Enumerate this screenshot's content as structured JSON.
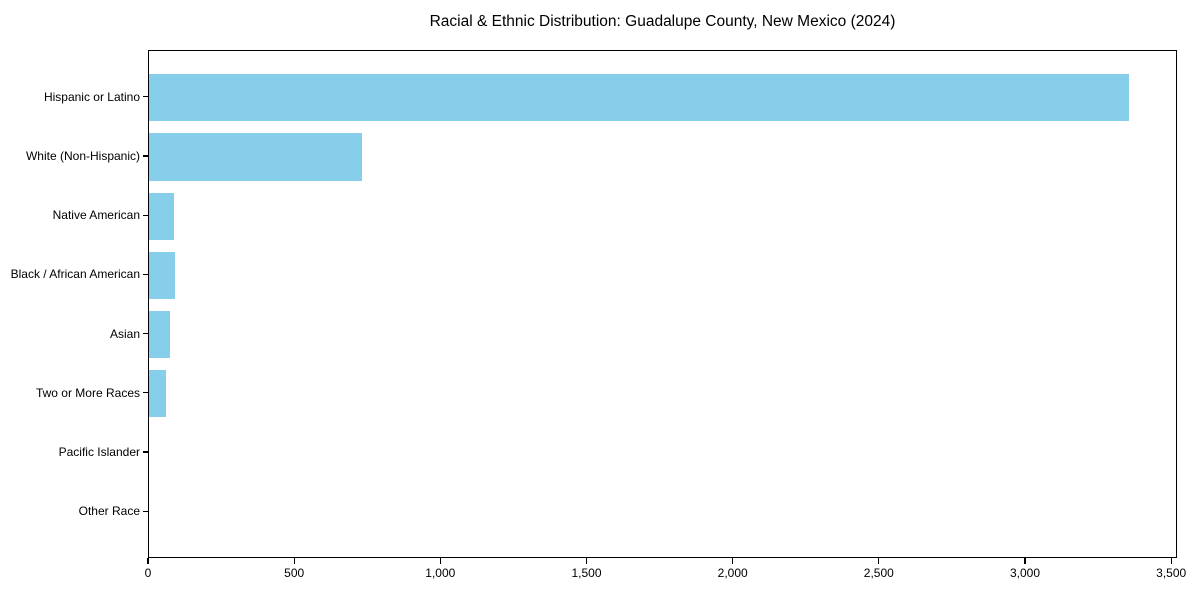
{
  "chart_data": {
    "type": "bar",
    "orientation": "horizontal",
    "title": "Racial & Ethnic Distribution: Guadalupe County, New Mexico (2024)",
    "categories": [
      "Hispanic or Latino",
      "White (Non-Hispanic)",
      "Native American",
      "Black / African American",
      "Asian",
      "Two or More Races",
      "Pacific Islander",
      "Other Race"
    ],
    "values": [
      3353,
      727,
      87,
      89,
      72,
      57,
      0,
      0
    ],
    "xlabel": "",
    "ylabel": "",
    "xlim": [
      0,
      3520
    ],
    "xticks": [
      0,
      500,
      1000,
      1500,
      2000,
      2500,
      3000,
      3500
    ],
    "xtick_labels": [
      "0",
      "500",
      "1,000",
      "1,500",
      "2,000",
      "2,500",
      "3,000",
      "3,500"
    ],
    "grid": false,
    "legend": "none",
    "bar_color": "#87CEEB",
    "axis_color": "#000000",
    "text_color": "#000000",
    "background_color": "#FFFFFF"
  }
}
